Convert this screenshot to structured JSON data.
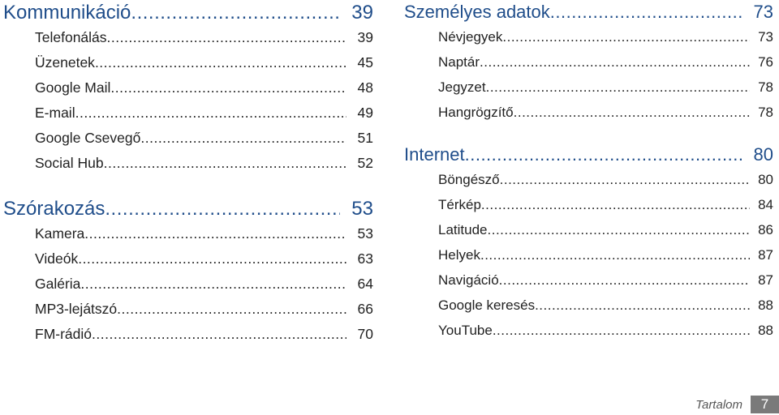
{
  "left_column": [
    {
      "title": "Kommunikáció",
      "page": "39",
      "items": [
        {
          "label": "Telefonálás",
          "page": "39"
        },
        {
          "label": "Üzenetek",
          "page": "45"
        },
        {
          "label": "Google Mail",
          "page": "48"
        },
        {
          "label": "E-mail",
          "page": "49"
        },
        {
          "label": "Google Csevegő",
          "page": "51"
        },
        {
          "label": "Social Hub",
          "page": "52"
        }
      ]
    },
    {
      "title": "Szórakozás",
      "page": "53",
      "items": [
        {
          "label": "Kamera",
          "page": "53"
        },
        {
          "label": "Videók",
          "page": "63"
        },
        {
          "label": "Galéria",
          "page": "64"
        },
        {
          "label": "MP3-lejátszó",
          "page": "66"
        },
        {
          "label": "FM-rádió",
          "page": "70"
        }
      ]
    }
  ],
  "right_column": [
    {
      "title": "Személyes adatok",
      "page": "73",
      "items": [
        {
          "label": "Névjegyek",
          "page": "73"
        },
        {
          "label": "Naptár",
          "page": "76"
        },
        {
          "label": "Jegyzet",
          "page": "78"
        },
        {
          "label": "Hangrögzítő",
          "page": "78"
        }
      ]
    },
    {
      "title": "Internet",
      "page": "80",
      "items": [
        {
          "label": "Böngésző",
          "page": "80"
        },
        {
          "label": "Térkép",
          "page": "84"
        },
        {
          "label": "Latitude",
          "page": "86"
        },
        {
          "label": "Helyek",
          "page": "87"
        },
        {
          "label": "Navigáció",
          "page": "87"
        },
        {
          "label": "Google keresés",
          "page": "88"
        },
        {
          "label": "YouTube",
          "page": "88"
        }
      ]
    }
  ],
  "footer": {
    "section_label": "Tartalom",
    "page_number": "7"
  },
  "colors": {
    "section_title": "#1f4d8a",
    "item_text": "#222222",
    "footer_box": "#7a7a7a"
  }
}
